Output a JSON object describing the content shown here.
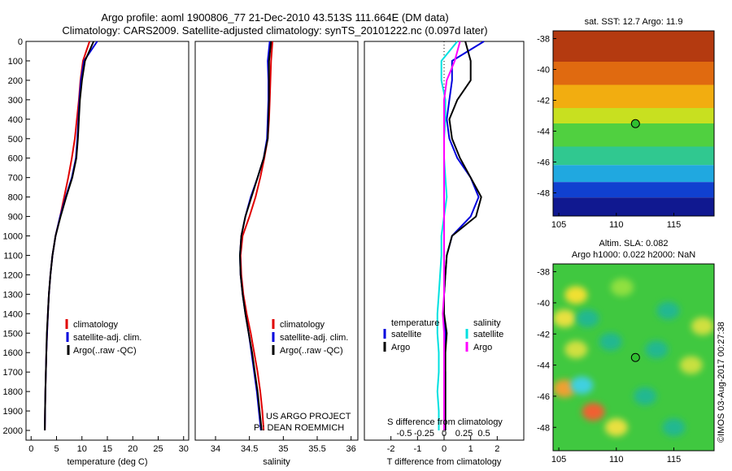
{
  "header": {
    "title_line1": "Argo profile: aoml 1900806_77 21-Dec-2010 43.513S 111.664E (DM data)",
    "title_line2": "Climatology: CARS2009. Satellite-adjusted climatology: synTS_20101222.nc (0.097d later)"
  },
  "watermark": "©IMOS 03-Aug-2017 00:27:38",
  "colors": {
    "climatology": "#e00000",
    "satellite": "#0000dd",
    "argo": "#000000",
    "s_satellite": "#00e0e0",
    "s_argo": "#ff00ff"
  },
  "chart_data": [
    {
      "id": "temperature",
      "type": "line",
      "xlabel": "temperature (deg C)",
      "ylabel": "",
      "xlim": [
        -1,
        31
      ],
      "ylim": [
        2050,
        0
      ],
      "xticks": [
        0,
        5,
        10,
        15,
        20,
        25,
        30
      ],
      "yticks": [
        0,
        100,
        200,
        300,
        400,
        500,
        600,
        700,
        800,
        900,
        1000,
        1100,
        1200,
        1300,
        1400,
        1500,
        1600,
        1700,
        1800,
        1900,
        2000
      ],
      "legend": {
        "entries": [
          "climatology",
          "satellite-adj. clim.",
          "Argo(..raw -QC)"
        ],
        "placement": "lower-center"
      },
      "series": [
        {
          "name": "climatology",
          "color": "#e00000",
          "x": [
            11.5,
            10.2,
            9.7,
            9.4,
            9.0,
            8.6,
            8.0,
            7.3,
            6.5,
            5.7,
            4.8,
            4.2,
            3.8,
            3.5,
            3.3,
            3.15,
            3.0,
            2.9,
            2.8,
            2.75,
            2.7
          ],
          "y": [
            0,
            100,
            200,
            300,
            400,
            500,
            600,
            700,
            800,
            900,
            1000,
            1100,
            1200,
            1300,
            1400,
            1500,
            1600,
            1700,
            1800,
            1900,
            2000
          ]
        },
        {
          "name": "satellite-adj. clim.",
          "color": "#0000dd",
          "x": [
            13.0,
            10.4,
            9.8,
            9.5,
            9.3,
            9.1,
            8.8,
            8.0,
            6.8,
            5.7,
            4.8,
            4.2,
            3.8,
            3.5,
            3.3,
            3.15,
            3.0,
            2.9,
            2.8,
            2.75,
            2.7
          ],
          "y": [
            0,
            100,
            200,
            300,
            400,
            500,
            600,
            700,
            800,
            900,
            1000,
            1100,
            1200,
            1300,
            1400,
            1500,
            1600,
            1700,
            1800,
            1900,
            2000
          ]
        },
        {
          "name": "Argo(..raw -QC)",
          "color": "#000000",
          "x": [
            12.3,
            10.6,
            10.0,
            9.6,
            9.4,
            9.2,
            8.9,
            8.1,
            6.9,
            5.8,
            4.8,
            4.2,
            3.8,
            3.5,
            3.3,
            3.1,
            3.0,
            2.9,
            2.8,
            2.75,
            2.7
          ],
          "y": [
            0,
            100,
            200,
            300,
            400,
            500,
            600,
            700,
            800,
            900,
            1000,
            1100,
            1200,
            1300,
            1400,
            1500,
            1600,
            1700,
            1800,
            1900,
            2000
          ]
        }
      ]
    },
    {
      "id": "salinity",
      "type": "line",
      "xlabel": "salinity",
      "ylabel": "",
      "xlim": [
        33.7,
        36.1
      ],
      "ylim": [
        2050,
        0
      ],
      "xticks": [
        34,
        34.5,
        35,
        35.5,
        36
      ],
      "legend": {
        "entries": [
          "climatology",
          "satellite-adj. clim.",
          "Argo(..raw -QC)"
        ],
        "placement": "lower-right"
      },
      "annotation": [
        "US ARGO PROJECT",
        "PI: DEAN ROEMMICH"
      ],
      "series": [
        {
          "name": "climatology",
          "color": "#e00000",
          "x": [
            34.84,
            34.82,
            34.81,
            34.8,
            34.79,
            34.77,
            34.72,
            34.66,
            34.59,
            34.5,
            34.4,
            34.37,
            34.38,
            34.41,
            34.46,
            34.52,
            34.57,
            34.62,
            34.66,
            34.69,
            34.71
          ],
          "y": [
            0,
            100,
            200,
            300,
            400,
            500,
            600,
            700,
            800,
            900,
            1000,
            1100,
            1200,
            1300,
            1400,
            1500,
            1600,
            1700,
            1800,
            1900,
            2000
          ]
        },
        {
          "name": "satellite-adj. clim.",
          "color": "#0000dd",
          "x": [
            34.8,
            34.77,
            34.78,
            34.78,
            34.77,
            34.76,
            34.71,
            34.62,
            34.52,
            34.44,
            34.38,
            34.36,
            34.37,
            34.4,
            34.44,
            34.49,
            34.53,
            34.57,
            34.61,
            34.64,
            34.67
          ],
          "y": [
            0,
            100,
            200,
            300,
            400,
            500,
            600,
            700,
            800,
            900,
            1000,
            1100,
            1200,
            1300,
            1400,
            1500,
            1600,
            1700,
            1800,
            1900,
            2000
          ]
        },
        {
          "name": "Argo(..raw -QC)",
          "color": "#000000",
          "x": [
            34.82,
            34.79,
            34.79,
            34.79,
            34.78,
            34.77,
            34.71,
            34.62,
            34.53,
            34.44,
            34.38,
            34.36,
            34.37,
            34.4,
            34.44,
            34.49,
            34.54,
            34.58,
            34.62,
            34.65,
            34.68
          ],
          "y": [
            0,
            100,
            200,
            300,
            400,
            500,
            600,
            700,
            800,
            900,
            1000,
            1100,
            1200,
            1300,
            1400,
            1500,
            1600,
            1700,
            1800,
            1900,
            2000
          ]
        }
      ]
    },
    {
      "id": "difference",
      "type": "line",
      "xlabel": "T difference from climatology",
      "xlabel_top": "S difference from climatology",
      "ylabel": "",
      "xlim": [
        -3,
        3
      ],
      "ylim": [
        2050,
        0
      ],
      "xticks": [
        -2,
        -1,
        0,
        1,
        2
      ],
      "xticks_s_labels": [
        "-0.5",
        "-0.25",
        "0",
        "0.25",
        "0.5"
      ],
      "legend": {
        "temperature_heading": "temperature",
        "salinity_heading": "salinity",
        "entries": [
          "satellite",
          "Argo",
          "satellite",
          "Argo"
        ],
        "placement": "lower-center"
      },
      "series": [
        {
          "name": "satellite",
          "color": "#0000dd",
          "x": [
            1.5,
            0.3,
            0.3,
            0.2,
            0.1,
            0.2,
            0.5,
            1.0,
            1.3,
            1.0,
            0.3,
            0.1,
            0.05,
            0.0,
            0.0,
            0.05,
            0.0,
            0.05,
            0.05,
            0.05,
            0.05
          ],
          "y": [
            0,
            100,
            200,
            300,
            400,
            500,
            600,
            700,
            800,
            900,
            1000,
            1100,
            1200,
            1300,
            1400,
            1500,
            1600,
            1700,
            1800,
            1900,
            2000
          ]
        },
        {
          "name": "Argo",
          "color": "#000000",
          "x": [
            0.8,
            1.0,
            1.0,
            0.5,
            0.2,
            0.3,
            0.6,
            1.0,
            1.4,
            1.2,
            0.3,
            0.1,
            0.05,
            0.0,
            0.0,
            0.1,
            0.05,
            0.05,
            0.05,
            0.05,
            0.05
          ],
          "y": [
            0,
            100,
            200,
            300,
            400,
            500,
            600,
            700,
            800,
            900,
            1000,
            1100,
            1200,
            1300,
            1400,
            1500,
            1600,
            1700,
            1800,
            1900,
            2000
          ]
        },
        {
          "name": "satellite",
          "color": "#00e0e0",
          "x": [
            0.5,
            -0.1,
            -0.1,
            0.05,
            0.05,
            0.0,
            0.0,
            0.05,
            0.1,
            0.0,
            -0.1,
            -0.1,
            -0.15,
            -0.2,
            -0.25,
            -0.25,
            -0.2,
            -0.2,
            -0.25,
            -0.2,
            -0.2
          ],
          "y": [
            0,
            100,
            200,
            300,
            400,
            500,
            600,
            700,
            800,
            900,
            1000,
            1100,
            1200,
            1300,
            1400,
            1500,
            1600,
            1700,
            1800,
            1900,
            2000
          ]
        },
        {
          "name": "Argo",
          "color": "#ff00ff",
          "x": [
            0.6,
            0.4,
            0.1,
            0.0,
            0.0,
            0.0,
            0.0,
            0.0,
            0.0,
            0.0,
            0.0,
            0.0,
            0.0,
            0.0,
            -0.05,
            0.0,
            0.0,
            0.0,
            0.0,
            0.0,
            0.0
          ],
          "y": [
            0,
            100,
            200,
            300,
            400,
            500,
            600,
            700,
            800,
            900,
            1000,
            1100,
            1200,
            1300,
            1400,
            1500,
            1600,
            1700,
            1800,
            1900,
            2000
          ]
        }
      ]
    },
    {
      "id": "sst_map",
      "type": "heatmap",
      "title": "sat. SST: 12.7 Argo: 11.9",
      "xlim": [
        104.5,
        118.5
      ],
      "ylim": [
        -49.5,
        -37.5
      ],
      "xticks": [
        105,
        110,
        115
      ],
      "yticks": [
        -38,
        -40,
        -42,
        -44,
        -46,
        -48
      ],
      "marker": {
        "lon": 111.664,
        "lat": -43.513
      },
      "bands": [
        {
          "lat_top": -37.5,
          "lat_bottom": -39.5,
          "color": "#b43a10"
        },
        {
          "lat_top": -39.5,
          "lat_bottom": -41.0,
          "color": "#e06a10"
        },
        {
          "lat_top": -41.0,
          "lat_bottom": -42.5,
          "color": "#f2ad10"
        },
        {
          "lat_top": -42.5,
          "lat_bottom": -43.5,
          "color": "#c8e020"
        },
        {
          "lat_top": -43.5,
          "lat_bottom": -45.0,
          "color": "#50d040"
        },
        {
          "lat_top": -45.0,
          "lat_bottom": -46.2,
          "color": "#30c890"
        },
        {
          "lat_top": -46.2,
          "lat_bottom": -47.3,
          "color": "#20a8e0"
        },
        {
          "lat_top": -47.3,
          "lat_bottom": -48.3,
          "color": "#1040d0"
        },
        {
          "lat_top": -48.3,
          "lat_bottom": -49.5,
          "color": "#101890"
        }
      ]
    },
    {
      "id": "sla_map",
      "type": "heatmap",
      "title_line1": "Altim. SLA: 0.082",
      "title_line2": "Argo h1000: 0.022 h2000: NaN",
      "xlim": [
        104.5,
        118.5
      ],
      "ylim": [
        -49.5,
        -37.5
      ],
      "xticks": [
        105,
        110,
        115
      ],
      "yticks": [
        -38,
        -40,
        -42,
        -44,
        -46,
        -48
      ],
      "marker": {
        "lon": 111.664,
        "lat": -43.513
      },
      "background": "#40c840",
      "blobs": [
        {
          "lon": 106.5,
          "lat": -39.5,
          "color": "#f0e030"
        },
        {
          "lon": 110.5,
          "lat": -39.0,
          "color": "#90e040"
        },
        {
          "lon": 105.5,
          "lat": -41.0,
          "color": "#e8e040"
        },
        {
          "lon": 107.5,
          "lat": -41.0,
          "color": "#20b890"
        },
        {
          "lon": 114.5,
          "lat": -40.5,
          "color": "#20b890"
        },
        {
          "lon": 117.5,
          "lat": -41.5,
          "color": "#d0e040"
        },
        {
          "lon": 106.5,
          "lat": -43.0,
          "color": "#d0e040"
        },
        {
          "lon": 109.5,
          "lat": -42.5,
          "color": "#20b890"
        },
        {
          "lon": 113.5,
          "lat": -43.0,
          "color": "#20b890"
        },
        {
          "lon": 116.5,
          "lat": -44.0,
          "color": "#c8e040"
        },
        {
          "lon": 105.5,
          "lat": -45.5,
          "color": "#f0a030"
        },
        {
          "lon": 107.0,
          "lat": -45.3,
          "color": "#40d0e0"
        },
        {
          "lon": 112.5,
          "lat": -46.0,
          "color": "#20b890"
        },
        {
          "lon": 108.0,
          "lat": -47.0,
          "color": "#f06030"
        },
        {
          "lon": 110.0,
          "lat": -48.0,
          "color": "#e8e040"
        },
        {
          "lon": 115.0,
          "lat": -48.0,
          "color": "#20b890"
        }
      ]
    }
  ]
}
